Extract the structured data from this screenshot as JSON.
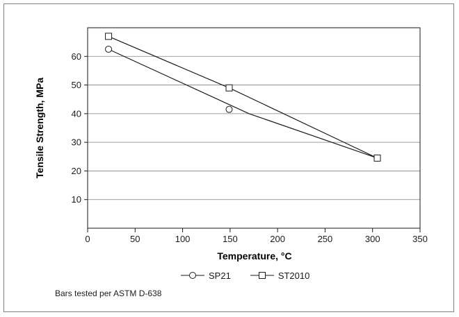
{
  "chart_data": {
    "type": "line",
    "title": "",
    "xlabel": "Temperature, °C",
    "ylabel": "Tensile Strength, MPa",
    "xlim": [
      0,
      350
    ],
    "ylim": [
      0,
      70
    ],
    "xticks": [
      0,
      50,
      100,
      150,
      200,
      250,
      300,
      350
    ],
    "yticks": [
      10,
      20,
      30,
      40,
      50,
      60
    ],
    "grid": "horizontal",
    "legend_position": "bottom",
    "series": [
      {
        "name": "SP21",
        "marker": "circle",
        "points": [
          [
            22,
            62.5
          ],
          [
            149,
            41.5
          ],
          [
            305,
            24.5
          ]
        ],
        "curve": [
          [
            22,
            62.5
          ],
          [
            170,
            40
          ],
          [
            305,
            24.5
          ]
        ]
      },
      {
        "name": "ST2010",
        "marker": "square",
        "points": [
          [
            22,
            67
          ],
          [
            149,
            49
          ],
          [
            305,
            24.5
          ]
        ],
        "curve": [
          [
            22,
            67
          ],
          [
            149,
            49
          ],
          [
            305,
            24.5
          ]
        ]
      }
    ],
    "footnote": "Bars tested per ASTM D-638"
  },
  "colors": {
    "line": "#1a1a1a",
    "grid": "#7f7f7f",
    "frame": "#808080"
  }
}
